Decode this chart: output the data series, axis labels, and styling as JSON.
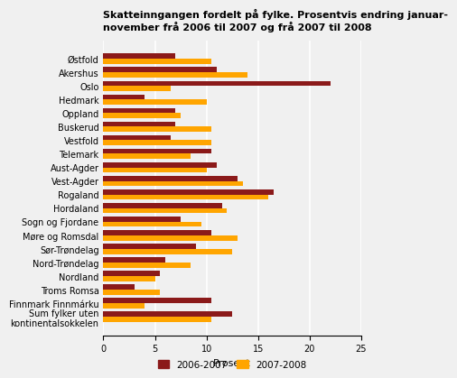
{
  "title": "Skatteinngangen fordelt på fylke. Prosentvis endring januar-\nnovember frå 2006 til 2007 og frå 2007 til 2008",
  "categories": [
    "Østfold",
    "Akershus",
    "Oslo",
    "Hedmark",
    "Oppland",
    "Buskerud",
    "Vestfold",
    "Telemark",
    "Aust-Agder",
    "Vest-Agder",
    "Rogaland",
    "Hordaland",
    "Sogn og Fjordane",
    "Møre og Romsdal",
    "Sør-Trøndelag",
    "Nord-Trøndelag",
    "Nordland",
    "Troms Romsa",
    "Finnmark Finnmárku",
    "Sum fylker uten\nkontinentalsokkelen"
  ],
  "values_2006_2007": [
    7.0,
    11.0,
    22.0,
    4.0,
    7.0,
    7.0,
    6.5,
    10.5,
    11.0,
    13.0,
    16.5,
    11.5,
    7.5,
    10.5,
    9.0,
    6.0,
    5.5,
    3.0,
    10.5,
    12.5
  ],
  "values_2007_2008": [
    10.5,
    14.0,
    6.5,
    10.0,
    7.5,
    10.5,
    10.5,
    8.5,
    10.0,
    13.5,
    16.0,
    12.0,
    9.5,
    13.0,
    12.5,
    8.5,
    5.0,
    5.5,
    4.0,
    10.5
  ],
  "color_2006_2007": "#8B1A1A",
  "color_2007_2008": "#FFA500",
  "xlabel": "Prosent",
  "xlim": [
    0,
    25
  ],
  "xticks": [
    0,
    5,
    10,
    15,
    20,
    25
  ],
  "bar_height": 0.38,
  "legend_labels": [
    "2006-2007",
    "2007-2008"
  ],
  "background_color": "#f0f0f0",
  "grid_color": "#ffffff"
}
